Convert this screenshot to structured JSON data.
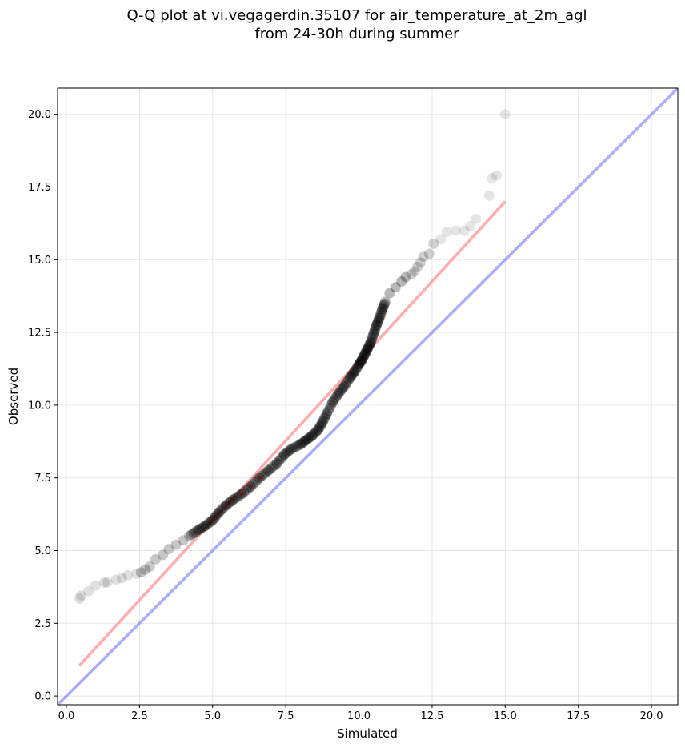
{
  "title": {
    "line1": "Q-Q plot at vi.vegagerdin.35107 for air_temperature_at_2m_agl",
    "line2": "from 24-30h during summer"
  },
  "chart_data": {
    "type": "scatter",
    "title": "Q-Q plot at vi.vegagerdin.35107 for air_temperature_at_2m_agl from 24-30h during summer",
    "xlabel": "Simulated",
    "ylabel": "Observed",
    "xlim": [
      -0.3,
      20.9
    ],
    "ylim": [
      -0.3,
      20.9
    ],
    "xticks": [
      "0.0",
      "2.5",
      "5.0",
      "7.5",
      "10.0",
      "12.5",
      "15.0",
      "17.5",
      "20.0"
    ],
    "yticks": [
      "0.0",
      "2.5",
      "5.0",
      "7.5",
      "10.0",
      "12.5",
      "15.0",
      "17.5",
      "20.0"
    ],
    "grid": true,
    "colors": {
      "points": "#000000",
      "fit_line": "#ff7f7f",
      "identity_line": "#7f7fff"
    },
    "series": [
      {
        "type": "scatter",
        "x": [
          0.45,
          0.5,
          0.75,
          1.0,
          1.3,
          1.4,
          1.7,
          1.9,
          2.1,
          2.4,
          2.55,
          2.7,
          2.85,
          3.05,
          3.3,
          3.5,
          3.75,
          4.0,
          4.2,
          4.5,
          4.75,
          5.0,
          5.2,
          5.45,
          5.7,
          6.0,
          6.3,
          6.6,
          6.9,
          7.2,
          7.45,
          7.7,
          8.0,
          8.2,
          8.4,
          8.6,
          8.75,
          8.9,
          9.1,
          9.3,
          9.5,
          9.7,
          9.85,
          10.0,
          10.1,
          10.2,
          10.3,
          10.4,
          10.5,
          10.6,
          10.7,
          10.8,
          10.9,
          11.05,
          11.25,
          11.45,
          11.6,
          11.8,
          11.9,
          12.0,
          12.1,
          12.2,
          12.4,
          12.55,
          12.8,
          13.0,
          13.3,
          13.6,
          13.8,
          14.0,
          14.45,
          14.55,
          14.7,
          15.0
        ],
        "y": [
          3.35,
          3.45,
          3.6,
          3.8,
          3.9,
          3.9,
          4.0,
          4.05,
          4.15,
          4.2,
          4.25,
          4.35,
          4.45,
          4.7,
          4.85,
          5.05,
          5.2,
          5.35,
          5.5,
          5.7,
          5.85,
          6.05,
          6.3,
          6.55,
          6.75,
          6.95,
          7.2,
          7.5,
          7.75,
          8.0,
          8.3,
          8.5,
          8.65,
          8.8,
          8.95,
          9.15,
          9.4,
          9.7,
          10.1,
          10.4,
          10.65,
          10.95,
          11.15,
          11.4,
          11.55,
          11.75,
          11.95,
          12.15,
          12.45,
          12.75,
          13.0,
          13.3,
          13.55,
          13.85,
          14.05,
          14.25,
          14.4,
          14.5,
          14.6,
          14.75,
          14.9,
          15.1,
          15.2,
          15.55,
          15.7,
          15.95,
          16.0,
          16.0,
          16.15,
          16.4,
          17.2,
          17.8,
          17.9,
          20.0
        ]
      },
      {
        "type": "line",
        "name": "",
        "x": [
          0.45,
          15.0
        ],
        "y": [
          1.05,
          17.0
        ]
      },
      {
        "type": "line",
        "name": "",
        "x": [
          -0.3,
          20.9
        ],
        "y": [
          -0.3,
          20.9
        ]
      }
    ]
  }
}
